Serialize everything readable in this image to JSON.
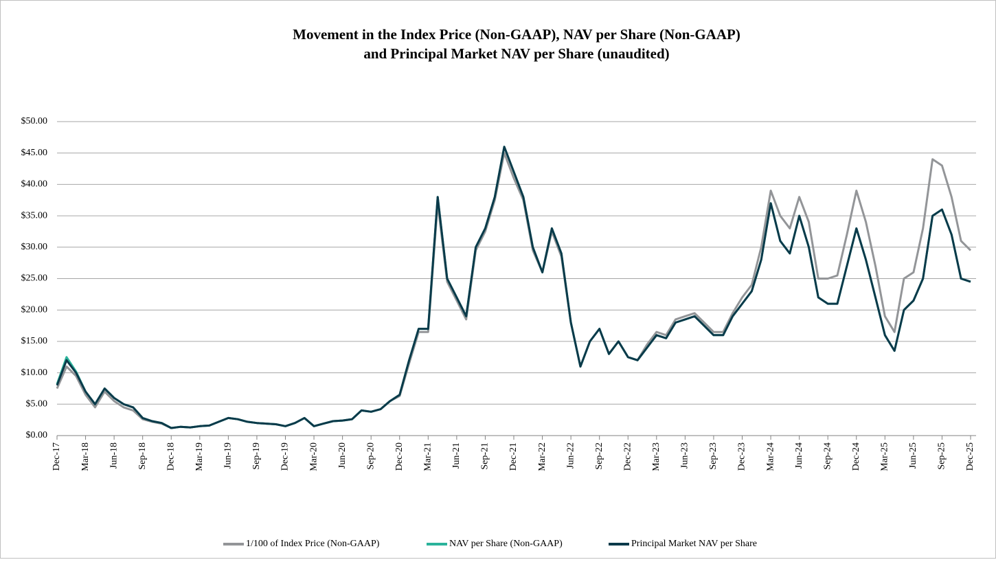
{
  "chart_data": {
    "type": "line",
    "title": [
      "Movement in the Index Price (Non-GAAP), NAV per Share (Non-GAAP)",
      "and Principal Market NAV per Share (unaudited)"
    ],
    "categories": [
      "Dec-17",
      null,
      null,
      "Mar-18",
      null,
      null,
      "Jun-18",
      null,
      null,
      "Sep-18",
      null,
      null,
      "Dec-18",
      null,
      null,
      "Mar-19",
      null,
      null,
      "Jun-19",
      null,
      null,
      "Sep-19",
      null,
      null,
      "Dec-19",
      null,
      null,
      "Mar-20",
      null,
      null,
      "Jun-20",
      null,
      null,
      "Sep-20",
      null,
      null,
      "Dec-20",
      null,
      null,
      "Mar-21",
      null,
      null,
      "Jun-21",
      null,
      null,
      "Sep-21",
      null,
      null,
      "Dec-21",
      null,
      null,
      "Mar-22",
      null,
      null,
      "Jun-22",
      null,
      null,
      "Sep-22",
      null,
      null,
      "Dec-22",
      null,
      null,
      "Mar-23",
      null,
      null,
      "Jun-23",
      null,
      null,
      "Sep-23",
      null,
      null,
      "Dec-23",
      null,
      null,
      "Mar-24",
      null,
      null,
      "Jun-24",
      null,
      null,
      "Sep-24",
      null,
      null,
      "Dec-24",
      null,
      null,
      "Mar-25",
      null,
      null,
      "Jun-25",
      null,
      null,
      "Sep-25",
      null,
      null,
      "Dec-25"
    ],
    "series": [
      {
        "name": "1/100 of Index Price (Non-GAAP)",
        "color": "#939598",
        "values": [
          7.5,
          11,
          9.5,
          6.5,
          4.5,
          7,
          5.5,
          4.5,
          4,
          2.6,
          2.2,
          1.9,
          1.2,
          1.4,
          1.3,
          1.5,
          1.6,
          2.2,
          2.8,
          2.6,
          2.2,
          2.0,
          1.9,
          1.8,
          1.5,
          2.0,
          2.8,
          1.5,
          1.9,
          2.3,
          2.4,
          2.6,
          4.0,
          3.8,
          4.2,
          5.5,
          6.3,
          11.5,
          16.5,
          16.5,
          37,
          24.5,
          21.5,
          18.5,
          29.5,
          32.5,
          37.5,
          45,
          41,
          37.5,
          29.5,
          26,
          32.5,
          28.5,
          18,
          11,
          15,
          17,
          13,
          15,
          12.5,
          12,
          14.5,
          16.5,
          16,
          18.5,
          19,
          19.5,
          18,
          16.5,
          16.5,
          19.5,
          22,
          24,
          30,
          39,
          35,
          33,
          38,
          34,
          25,
          25,
          25.5,
          32,
          39,
          34,
          27,
          19,
          16.5,
          25,
          26,
          33,
          44,
          43,
          38,
          31,
          29.5
        ]
      },
      {
        "name": "NAV per Share (Non-GAAP)",
        "color": "#2bb39b",
        "values": [
          8.2,
          12.5,
          10.2,
          7,
          5,
          7.5,
          6,
          5,
          4.5,
          2.8,
          2.3,
          2.0,
          1.2,
          1.4,
          1.3,
          1.5,
          1.6,
          2.2,
          2.8,
          2.6,
          2.2,
          2.0,
          1.9,
          1.8,
          1.5,
          2.0,
          2.8,
          1.5,
          1.9,
          2.3,
          2.4,
          2.6,
          4.0,
          3.8,
          4.2,
          5.5,
          6.5,
          12,
          17,
          17,
          38,
          25,
          22,
          19,
          30,
          33,
          38,
          46,
          42,
          38,
          30,
          26,
          33,
          29,
          18,
          11,
          15,
          17,
          13,
          15,
          12.5,
          12,
          14,
          16,
          15.5,
          18,
          18.5,
          19,
          17.5,
          16,
          16,
          19,
          21,
          23,
          28,
          37,
          31,
          29,
          35,
          30,
          22,
          21,
          21,
          27,
          33,
          28,
          22,
          16,
          13.5,
          20,
          21.5,
          25,
          35,
          36,
          32,
          25,
          24.5
        ]
      },
      {
        "name": "Principal Market NAV per Share",
        "color": "#0b3a4a",
        "values": [
          8,
          12,
          10,
          7,
          5,
          7.5,
          6,
          5,
          4.5,
          2.8,
          2.3,
          2.0,
          1.2,
          1.4,
          1.3,
          1.5,
          1.6,
          2.2,
          2.8,
          2.6,
          2.2,
          2.0,
          1.9,
          1.8,
          1.5,
          2.0,
          2.8,
          1.5,
          1.9,
          2.3,
          2.4,
          2.6,
          4.0,
          3.8,
          4.2,
          5.5,
          6.5,
          12,
          17,
          17,
          38,
          25,
          22,
          19,
          30,
          33,
          38,
          46,
          42,
          38,
          30,
          26,
          33,
          29,
          18,
          11,
          15,
          17,
          13,
          15,
          12.5,
          12,
          14,
          16,
          15.5,
          18,
          18.5,
          19,
          17.5,
          16,
          16,
          19,
          21,
          23,
          28,
          37,
          31,
          29,
          35,
          30,
          22,
          21,
          21,
          27,
          33,
          28,
          22,
          16,
          13.5,
          20,
          21.5,
          25,
          35,
          36,
          32,
          25,
          24.5
        ]
      }
    ],
    "ylim": [
      0,
      50
    ],
    "yticks": [
      {
        "value": 0,
        "label": "$0.00"
      },
      {
        "value": 5,
        "label": "$5.00"
      },
      {
        "value": 10,
        "label": "$10.00"
      },
      {
        "value": 15,
        "label": "$15.00"
      },
      {
        "value": 20,
        "label": "$20.00"
      },
      {
        "value": 25,
        "label": "$25.00"
      },
      {
        "value": 30,
        "label": "$30.00"
      },
      {
        "value": 35,
        "label": "$35.00"
      },
      {
        "value": 40,
        "label": "$40.00"
      },
      {
        "value": 45,
        "label": "$45.00"
      },
      {
        "value": 50,
        "label": "$50.00"
      }
    ],
    "grid": true,
    "legend": "bottom"
  }
}
